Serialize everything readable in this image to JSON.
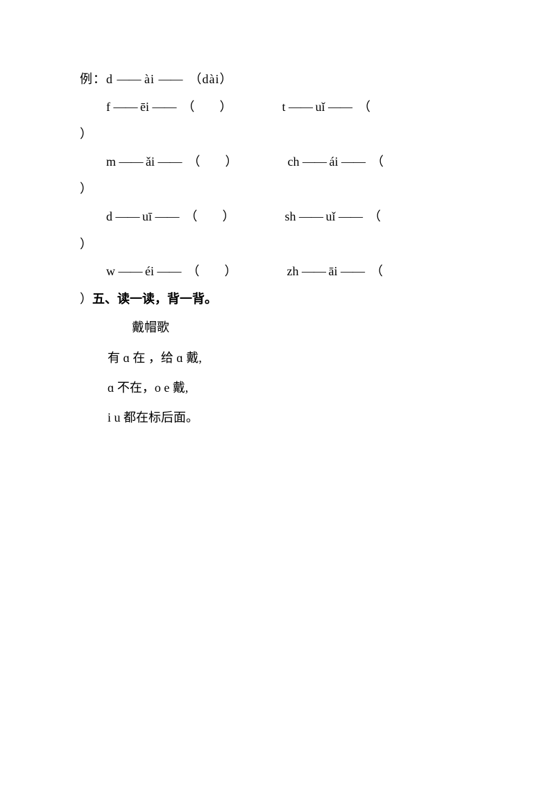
{
  "example": {
    "label": "例：",
    "initial": "d",
    "final": "ài",
    "result": "（dài）",
    "dash": "——"
  },
  "exercises": {
    "row1": {
      "left": {
        "initial": "f",
        "final": "ēi",
        "blank": "（　　）"
      },
      "right": {
        "initial": "t",
        "final": "uǐ",
        "blank": "（"
      }
    },
    "row2": {
      "left": {
        "initial": "m",
        "final": "ǎi",
        "blank": "（　　）"
      },
      "right": {
        "initial": "ch",
        "final": "ái",
        "blank": "（"
      }
    },
    "row3": {
      "left": {
        "initial": "d",
        "final": "uī",
        "blank": "（　　）"
      },
      "right": {
        "initial": "sh",
        "final": "uǐ",
        "blank": "（"
      }
    },
    "row4": {
      "left": {
        "initial": "w",
        "final": "éi",
        "blank": "（　　）"
      },
      "right": {
        "initial": "zh",
        "final": "āi",
        "blank": "（"
      }
    },
    "closeParen": "）",
    "dash": "——"
  },
  "section": {
    "title": "五、读一读，背一背。"
  },
  "poem": {
    "title": "戴帽歌",
    "line1": "有 ɑ 在 ，给 ɑ 戴,",
    "line2": "ɑ  不在，o e 戴,",
    "line3": "i u  都在标后面。"
  }
}
